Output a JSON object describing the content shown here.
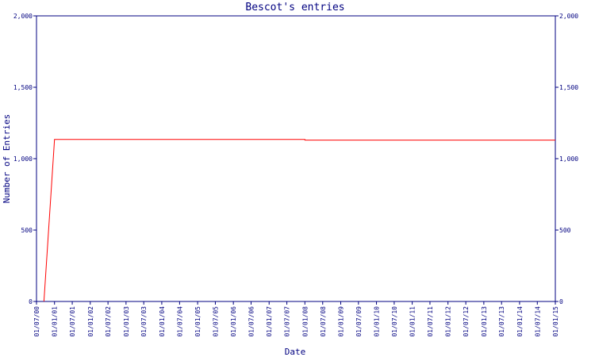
{
  "chart_data": {
    "type": "line",
    "title": "Bescot's entries",
    "xlabel": "Date",
    "ylabel": "Number of Entries",
    "ylim": [
      0,
      2000
    ],
    "y_ticks": [
      0,
      500,
      1000,
      1500,
      2000
    ],
    "y_tick_labels": [
      "0",
      "500",
      "1,000",
      "1,500",
      "2,000"
    ],
    "y_axis_right_labels": true,
    "x_range": [
      "2000-07-01",
      "2015-01-01"
    ],
    "x_ticks": [
      "2000-07-01",
      "2001-01-01",
      "2001-07-01",
      "2002-01-01",
      "2002-07-01",
      "2003-01-01",
      "2003-07-01",
      "2004-01-01",
      "2004-07-01",
      "2005-01-01",
      "2005-07-01",
      "2006-01-01",
      "2006-07-01",
      "2007-01-01",
      "2007-07-01",
      "2008-01-01",
      "2008-07-01",
      "2009-01-01",
      "2009-07-01",
      "2010-01-01",
      "2010-07-01",
      "2011-01-01",
      "2011-07-01",
      "2012-01-01",
      "2012-07-01",
      "2013-01-01",
      "2013-07-01",
      "2014-01-01",
      "2014-07-01",
      "2015-01-01"
    ],
    "x_tick_labels": [
      "01/07/00",
      "01/01/01",
      "01/07/01",
      "01/01/02",
      "01/07/02",
      "01/01/03",
      "01/07/03",
      "01/01/04",
      "01/07/04",
      "01/01/05",
      "01/07/05",
      "01/01/06",
      "01/07/06",
      "01/01/07",
      "01/07/07",
      "01/01/08",
      "01/07/08",
      "01/01/09",
      "01/07/09",
      "01/01/10",
      "01/07/10",
      "01/01/11",
      "01/07/11",
      "01/01/12",
      "01/07/12",
      "01/01/13",
      "01/07/13",
      "01/01/14",
      "01/07/14",
      "01/01/15"
    ],
    "grid": false,
    "series": [
      {
        "name": "",
        "color": "#ff0000",
        "points": [
          {
            "x": "2000-09-15",
            "y": 0
          },
          {
            "x": "2001-01-01",
            "y": 1135
          },
          {
            "x": "2008-01-01",
            "y": 1135
          },
          {
            "x": "2008-01-01",
            "y": 1130
          },
          {
            "x": "2015-01-01",
            "y": 1130
          }
        ]
      }
    ],
    "axis_color": "#000080"
  }
}
